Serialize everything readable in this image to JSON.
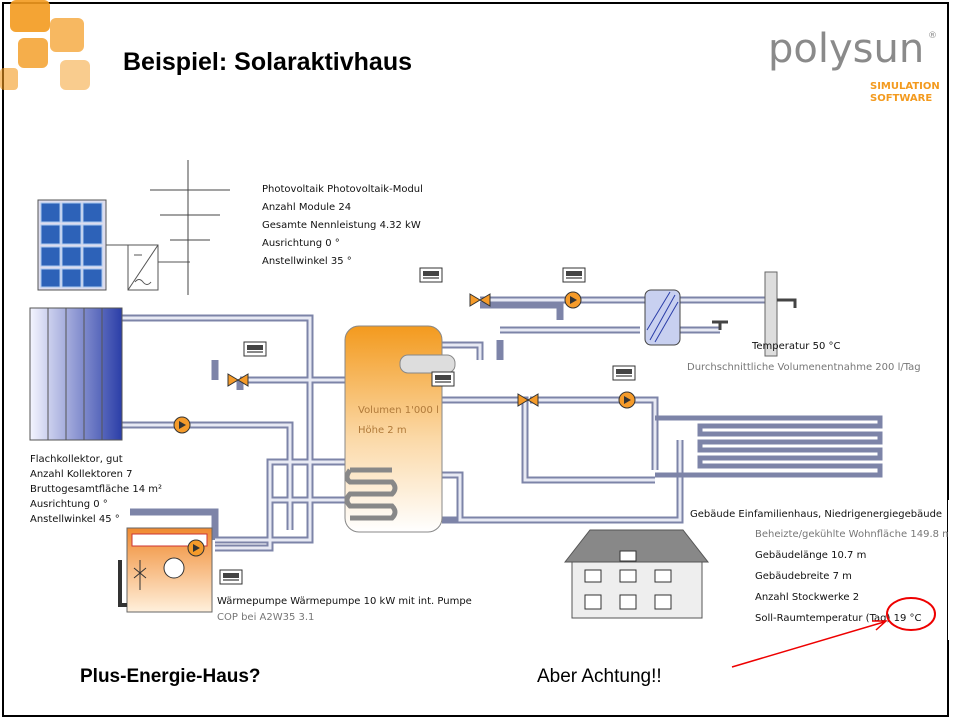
{
  "header": {
    "title": "Beispiel: Solaraktivhaus",
    "logo": {
      "name": "polysun",
      "mark": "®",
      "line1": "SIMULATION",
      "line2": "SOFTWARE"
    }
  },
  "photovoltaics": {
    "lines": [
      "Photovoltaik Photovoltaik-Modul",
      "Anzahl Module 24",
      "Gesamte Nennleistung 4.32 kW",
      "Ausrichtung 0 °",
      "Anstellwinkel 35 °"
    ]
  },
  "storage": {
    "lines": [
      "Volumen 1'000 l",
      "Höhe 2 m"
    ]
  },
  "hot_water": {
    "lines": [
      "Temperatur 50 °C",
      "Durchschnittliche Volumenentnahme 200 l/Tag"
    ]
  },
  "collector": {
    "lines": [
      "Flachkollektor, gut",
      "Anzahl Kollektoren 7",
      "Bruttogesamtfläche 14 m²",
      "Ausrichtung 0 °",
      "Anstellwinkel 45 °"
    ]
  },
  "heat_pump": {
    "lines": [
      "Wärmepumpe Wärmepumpe 10 kW mit int. Pumpe",
      "COP bei A2W35 3.1"
    ]
  },
  "building": {
    "lines": [
      "Gebäude Einfamilienhaus, Niedrigenergiegebäude",
      "Beheizte/gekühlte Wohnfläche 149.8 m",
      "Gebäudelänge 10.7 m",
      "Gebäudebreite 7 m",
      "Anzahl Stockwerke 2",
      "Soll-Raumtemperatur (Tag) 19 °C"
    ]
  },
  "footer": {
    "question": "Plus-Energie-Haus?",
    "warning": "Aber Achtung!!"
  }
}
